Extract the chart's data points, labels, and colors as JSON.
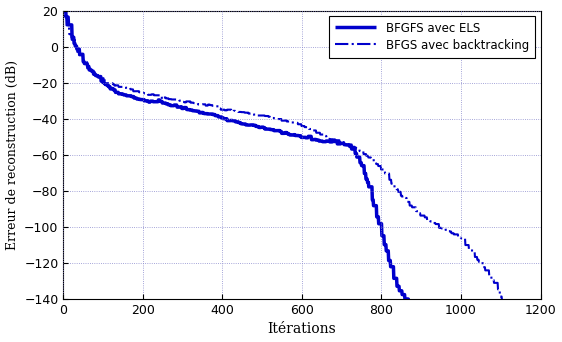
{
  "title": "",
  "xlabel": "Itérations",
  "ylabel": "Erreur de reconstruction (dB)",
  "xlim": [
    0,
    1200
  ],
  "ylim": [
    -140,
    20
  ],
  "xticks": [
    0,
    200,
    400,
    600,
    800,
    1000,
    1200
  ],
  "yticks": [
    20,
    0,
    -20,
    -40,
    -60,
    -80,
    -100,
    -120,
    -140
  ],
  "legend1": "BFGFS avec ELS",
  "legend2": "BFGS avec backtracking",
  "line_color": "#0000cc",
  "background_color": "#ffffff",
  "grid_color": "#8888cc"
}
